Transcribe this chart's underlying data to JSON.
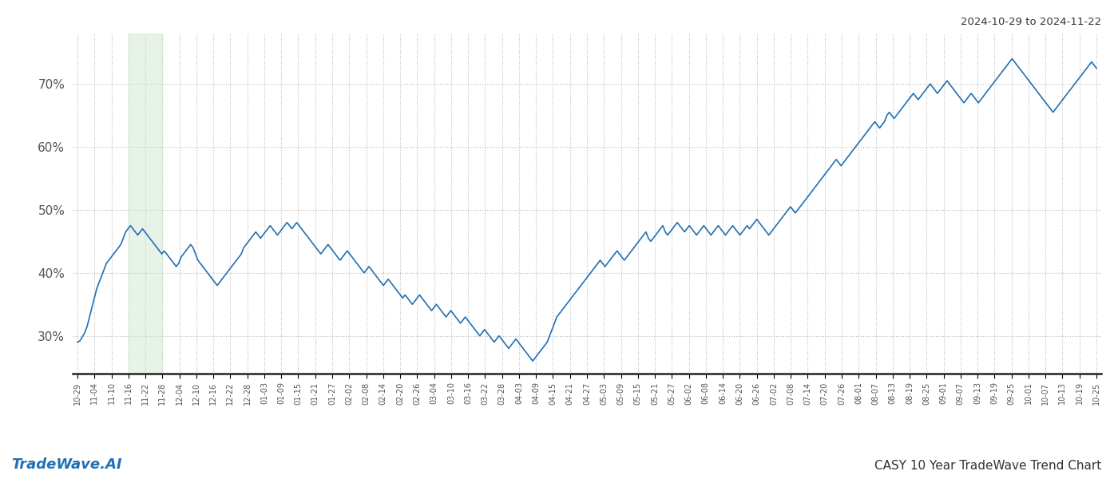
{
  "title_top_right": "2024-10-29 to 2024-11-22",
  "title_bottom_left": "TradeWave.AI",
  "title_bottom_right": "CASY 10 Year TradeWave Trend Chart",
  "line_color": "#2070b4",
  "line_width": 1.2,
  "shade_color": "#c8e6c9",
  "shade_alpha": 0.45,
  "background_color": "#ffffff",
  "grid_color": "#bbbbbb",
  "ylim": [
    24,
    78
  ],
  "yticks": [
    30,
    40,
    50,
    60,
    70
  ],
  "xtick_labels": [
    "10-29",
    "11-04",
    "11-10",
    "11-16",
    "11-22",
    "11-28",
    "12-04",
    "12-10",
    "12-16",
    "12-22",
    "12-28",
    "01-03",
    "01-09",
    "01-15",
    "01-21",
    "01-27",
    "02-02",
    "02-08",
    "02-14",
    "02-20",
    "02-26",
    "03-04",
    "03-10",
    "03-16",
    "03-22",
    "03-28",
    "04-03",
    "04-09",
    "04-15",
    "04-21",
    "04-27",
    "05-03",
    "05-09",
    "05-15",
    "05-21",
    "05-27",
    "06-02",
    "06-08",
    "06-14",
    "06-20",
    "06-26",
    "07-02",
    "07-08",
    "07-14",
    "07-20",
    "07-26",
    "08-01",
    "08-07",
    "08-13",
    "08-19",
    "08-25",
    "09-01",
    "09-07",
    "09-13",
    "09-19",
    "09-25",
    "10-01",
    "10-07",
    "10-13",
    "10-19",
    "10-25"
  ],
  "shade_start_label": "11-16",
  "shade_end_label": "11-28",
  "values": [
    29.0,
    29.2,
    29.8,
    30.5,
    31.5,
    33.0,
    34.5,
    36.0,
    37.5,
    38.5,
    39.5,
    40.5,
    41.5,
    42.0,
    42.5,
    43.0,
    43.5,
    44.0,
    44.5,
    45.5,
    46.5,
    47.0,
    47.5,
    47.0,
    46.5,
    46.0,
    46.5,
    47.0,
    46.5,
    46.0,
    45.5,
    45.0,
    44.5,
    44.0,
    43.5,
    43.0,
    43.5,
    43.0,
    42.5,
    42.0,
    41.5,
    41.0,
    41.5,
    42.5,
    43.0,
    43.5,
    44.0,
    44.5,
    44.0,
    43.0,
    42.0,
    41.5,
    41.0,
    40.5,
    40.0,
    39.5,
    39.0,
    38.5,
    38.0,
    38.5,
    39.0,
    39.5,
    40.0,
    40.5,
    41.0,
    41.5,
    42.0,
    42.5,
    43.0,
    44.0,
    44.5,
    45.0,
    45.5,
    46.0,
    46.5,
    46.0,
    45.5,
    46.0,
    46.5,
    47.0,
    47.5,
    47.0,
    46.5,
    46.0,
    46.5,
    47.0,
    47.5,
    48.0,
    47.5,
    47.0,
    47.5,
    48.0,
    47.5,
    47.0,
    46.5,
    46.0,
    45.5,
    45.0,
    44.5,
    44.0,
    43.5,
    43.0,
    43.5,
    44.0,
    44.5,
    44.0,
    43.5,
    43.0,
    42.5,
    42.0,
    42.5,
    43.0,
    43.5,
    43.0,
    42.5,
    42.0,
    41.5,
    41.0,
    40.5,
    40.0,
    40.5,
    41.0,
    40.5,
    40.0,
    39.5,
    39.0,
    38.5,
    38.0,
    38.5,
    39.0,
    38.5,
    38.0,
    37.5,
    37.0,
    36.5,
    36.0,
    36.5,
    36.0,
    35.5,
    35.0,
    35.5,
    36.0,
    36.5,
    36.0,
    35.5,
    35.0,
    34.5,
    34.0,
    34.5,
    35.0,
    34.5,
    34.0,
    33.5,
    33.0,
    33.5,
    34.0,
    33.5,
    33.0,
    32.5,
    32.0,
    32.5,
    33.0,
    32.5,
    32.0,
    31.5,
    31.0,
    30.5,
    30.0,
    30.5,
    31.0,
    30.5,
    30.0,
    29.5,
    29.0,
    29.5,
    30.0,
    29.5,
    29.0,
    28.5,
    28.0,
    28.5,
    29.0,
    29.5,
    29.0,
    28.5,
    28.0,
    27.5,
    27.0,
    26.5,
    26.0,
    26.5,
    27.0,
    27.5,
    28.0,
    28.5,
    29.0,
    30.0,
    31.0,
    32.0,
    33.0,
    33.5,
    34.0,
    34.5,
    35.0,
    35.5,
    36.0,
    36.5,
    37.0,
    37.5,
    38.0,
    38.5,
    39.0,
    39.5,
    40.0,
    40.5,
    41.0,
    41.5,
    42.0,
    41.5,
    41.0,
    41.5,
    42.0,
    42.5,
    43.0,
    43.5,
    43.0,
    42.5,
    42.0,
    42.5,
    43.0,
    43.5,
    44.0,
    44.5,
    45.0,
    45.5,
    46.0,
    46.5,
    45.5,
    45.0,
    45.5,
    46.0,
    46.5,
    47.0,
    47.5,
    46.5,
    46.0,
    46.5,
    47.0,
    47.5,
    48.0,
    47.5,
    47.0,
    46.5,
    47.0,
    47.5,
    47.0,
    46.5,
    46.0,
    46.5,
    47.0,
    47.5,
    47.0,
    46.5,
    46.0,
    46.5,
    47.0,
    47.5,
    47.0,
    46.5,
    46.0,
    46.5,
    47.0,
    47.5,
    47.0,
    46.5,
    46.0,
    46.5,
    47.0,
    47.5,
    47.0,
    47.5,
    48.0,
    48.5,
    48.0,
    47.5,
    47.0,
    46.5,
    46.0,
    46.5,
    47.0,
    47.5,
    48.0,
    48.5,
    49.0,
    49.5,
    50.0,
    50.5,
    50.0,
    49.5,
    50.0,
    50.5,
    51.0,
    51.5,
    52.0,
    52.5,
    53.0,
    53.5,
    54.0,
    54.5,
    55.0,
    55.5,
    56.0,
    56.5,
    57.0,
    57.5,
    58.0,
    57.5,
    57.0,
    57.5,
    58.0,
    58.5,
    59.0,
    59.5,
    60.0,
    60.5,
    61.0,
    61.5,
    62.0,
    62.5,
    63.0,
    63.5,
    64.0,
    63.5,
    63.0,
    63.5,
    64.0,
    65.0,
    65.5,
    65.0,
    64.5,
    65.0,
    65.5,
    66.0,
    66.5,
    67.0,
    67.5,
    68.0,
    68.5,
    68.0,
    67.5,
    68.0,
    68.5,
    69.0,
    69.5,
    70.0,
    69.5,
    69.0,
    68.5,
    69.0,
    69.5,
    70.0,
    70.5,
    70.0,
    69.5,
    69.0,
    68.5,
    68.0,
    67.5,
    67.0,
    67.5,
    68.0,
    68.5,
    68.0,
    67.5,
    67.0,
    67.5,
    68.0,
    68.5,
    69.0,
    69.5,
    70.0,
    70.5,
    71.0,
    71.5,
    72.0,
    72.5,
    73.0,
    73.5,
    74.0,
    73.5,
    73.0,
    72.5,
    72.0,
    71.5,
    71.0,
    70.5,
    70.0,
    69.5,
    69.0,
    68.5,
    68.0,
    67.5,
    67.0,
    66.5,
    66.0,
    65.5,
    66.0,
    66.5,
    67.0,
    67.5,
    68.0,
    68.5,
    69.0,
    69.5,
    70.0,
    70.5,
    71.0,
    71.5,
    72.0,
    72.5,
    73.0,
    73.5,
    73.0,
    72.5
  ]
}
